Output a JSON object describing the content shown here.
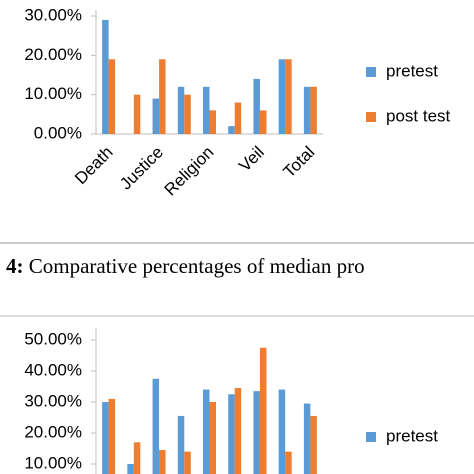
{
  "chart_data": [
    {
      "type": "bar",
      "categories": [
        "Death",
        null,
        "Justice",
        null,
        "Religion",
        null,
        "Veil",
        null,
        "Total"
      ],
      "series": [
        {
          "name": "pretest",
          "color": "#5b9bd5",
          "values": [
            29,
            0,
            9,
            12,
            12,
            2,
            14,
            19,
            12
          ]
        },
        {
          "name": "post test",
          "color": "#ed7d31",
          "values": [
            19,
            10,
            19,
            10,
            6,
            8,
            6,
            19,
            12
          ]
        }
      ],
      "ylim": [
        0,
        30
      ],
      "yticks": [
        {
          "value": 0,
          "label": "0.00%"
        },
        {
          "value": 10,
          "label": "10.00%"
        },
        {
          "value": 20,
          "label": "20.00%"
        },
        {
          "value": 30,
          "label": "30.00%"
        }
      ],
      "legend": "right"
    },
    {
      "type": "bar",
      "series": [
        {
          "name": "pretest",
          "color": "#5b9bd5",
          "values": [
            30,
            10,
            37.5,
            25.5,
            34,
            32.5,
            33.5,
            34,
            29.5
          ]
        },
        {
          "color": "#ed7d31",
          "values": [
            31,
            17,
            14.5,
            14,
            30,
            34.5,
            47.5,
            14,
            25.5
          ]
        }
      ],
      "ylim": [
        0,
        50
      ],
      "yticks": [
        {
          "value": 10,
          "label": "10.00%"
        },
        {
          "value": 20,
          "label": "20.00%"
        },
        {
          "value": 30,
          "label": "30.00%"
        },
        {
          "value": 40,
          "label": "40.00%"
        },
        {
          "value": 50,
          "label": "50.00%"
        }
      ],
      "legend": "right"
    }
  ],
  "caption": {
    "number": "4:",
    "text": "Comparative percentages of median pro"
  }
}
